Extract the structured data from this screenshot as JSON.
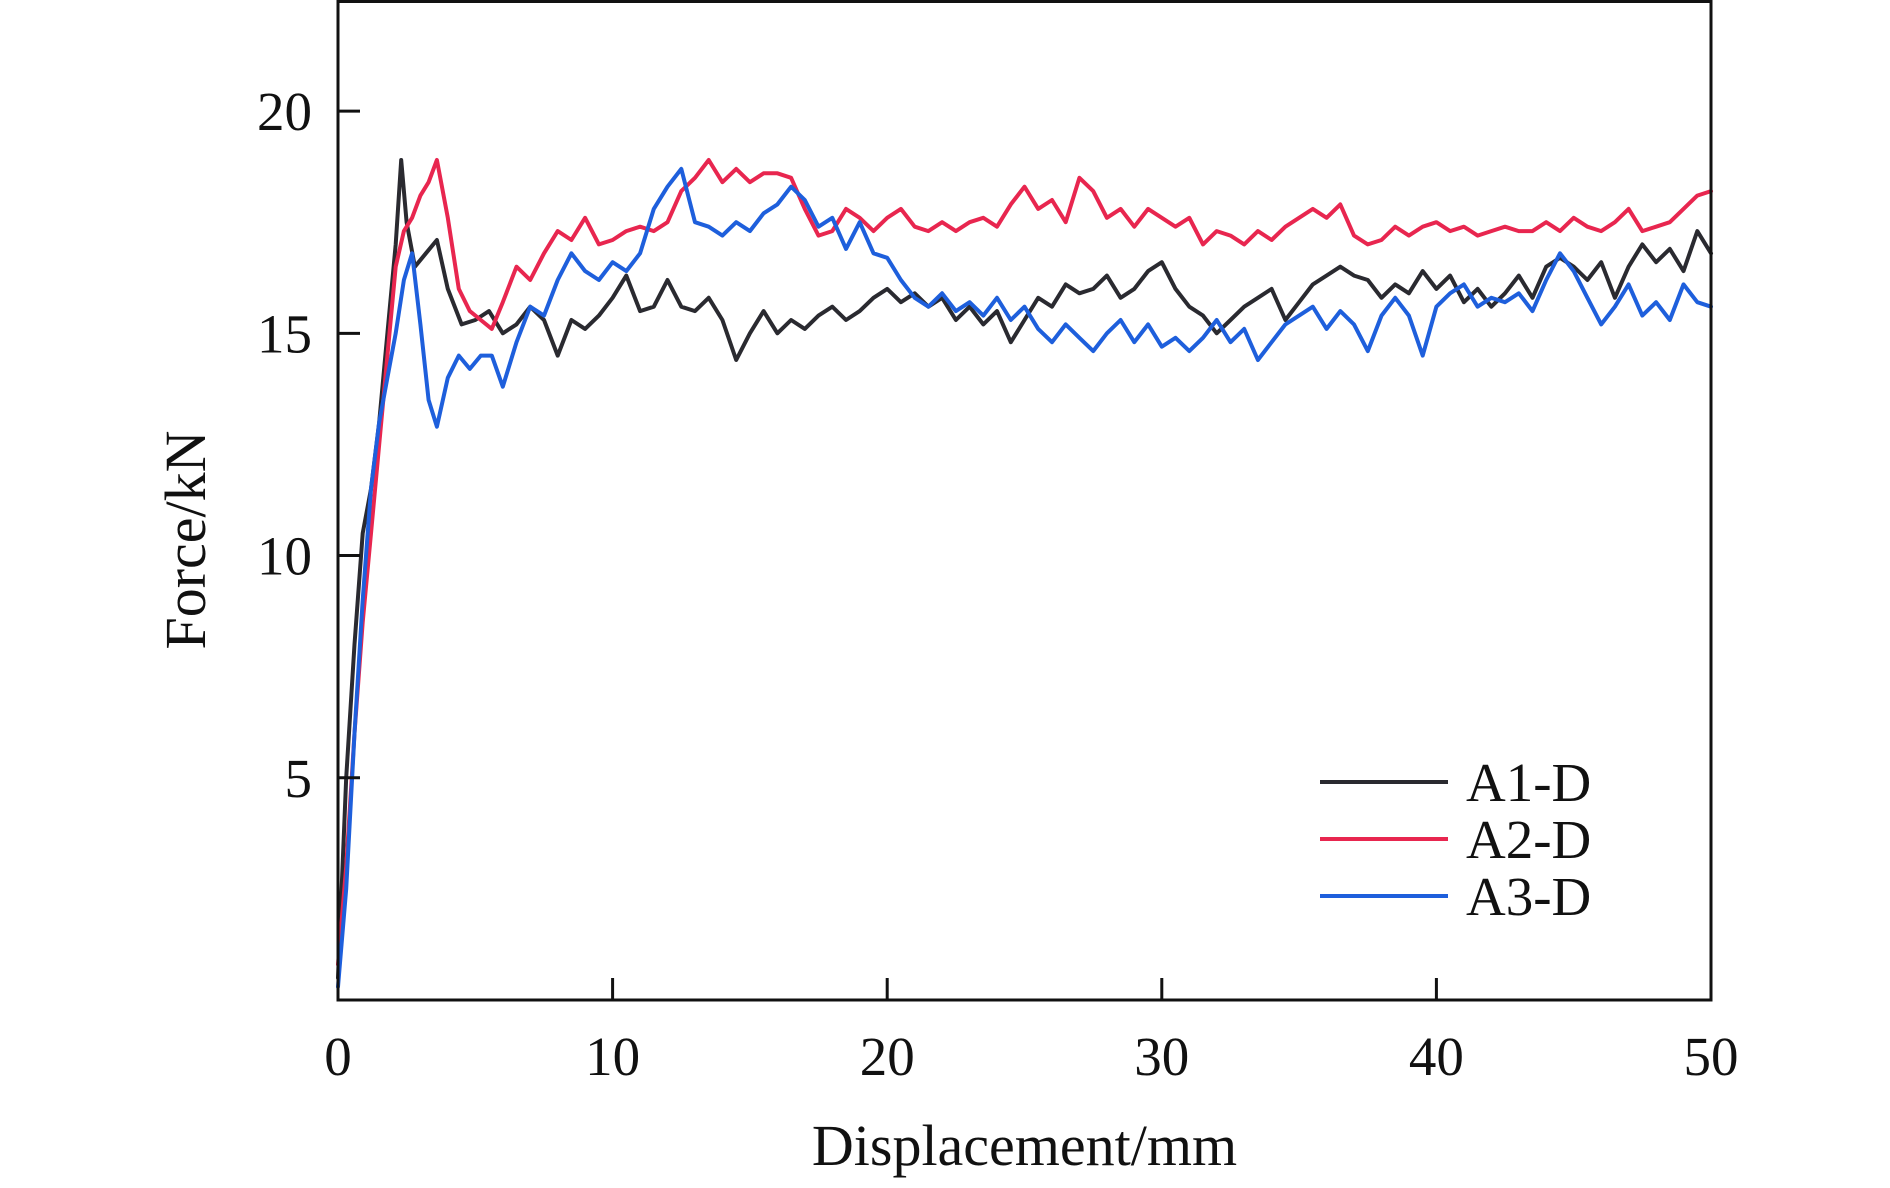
{
  "chart_data": {
    "type": "line",
    "title": "",
    "xlabel": "Displacement/mm",
    "ylabel": "Force/kN",
    "xlim": [
      0,
      50
    ],
    "ylim": [
      0,
      22.5
    ],
    "x_ticks": [
      0,
      10,
      20,
      30,
      40,
      50
    ],
    "y_ticks": [
      5,
      10,
      15,
      20
    ],
    "grid": false,
    "legend_position": "bottom-right",
    "series": [
      {
        "name": "A1-D",
        "color": "#2a2a30",
        "points": [
          [
            0,
            0.5
          ],
          [
            0.3,
            5
          ],
          [
            0.6,
            8
          ],
          [
            0.9,
            10.5
          ],
          [
            1.2,
            11.5
          ],
          [
            1.5,
            13
          ],
          [
            1.8,
            15
          ],
          [
            2.1,
            17
          ],
          [
            2.3,
            18.9
          ],
          [
            2.5,
            17.5
          ],
          [
            2.8,
            16.5
          ],
          [
            3.2,
            16.8
          ],
          [
            3.6,
            17.1
          ],
          [
            4,
            16
          ],
          [
            4.5,
            15.2
          ],
          [
            5,
            15.3
          ],
          [
            5.5,
            15.5
          ],
          [
            6,
            15
          ],
          [
            6.5,
            15.2
          ],
          [
            7,
            15.6
          ],
          [
            7.5,
            15.3
          ],
          [
            8,
            14.5
          ],
          [
            8.5,
            15.3
          ],
          [
            9,
            15.1
          ],
          [
            9.5,
            15.4
          ],
          [
            10,
            15.8
          ],
          [
            10.5,
            16.3
          ],
          [
            11,
            15.5
          ],
          [
            11.5,
            15.6
          ],
          [
            12,
            16.2
          ],
          [
            12.5,
            15.6
          ],
          [
            13,
            15.5
          ],
          [
            13.5,
            15.8
          ],
          [
            14,
            15.3
          ],
          [
            14.5,
            14.4
          ],
          [
            15,
            15
          ],
          [
            15.5,
            15.5
          ],
          [
            16,
            15
          ],
          [
            16.5,
            15.3
          ],
          [
            17,
            15.1
          ],
          [
            17.5,
            15.4
          ],
          [
            18,
            15.6
          ],
          [
            18.5,
            15.3
          ],
          [
            19,
            15.5
          ],
          [
            19.5,
            15.8
          ],
          [
            20,
            16
          ],
          [
            20.5,
            15.7
          ],
          [
            21,
            15.9
          ],
          [
            21.5,
            15.6
          ],
          [
            22,
            15.8
          ],
          [
            22.5,
            15.3
          ],
          [
            23,
            15.6
          ],
          [
            23.5,
            15.2
          ],
          [
            24,
            15.5
          ],
          [
            24.5,
            14.8
          ],
          [
            25,
            15.3
          ],
          [
            25.5,
            15.8
          ],
          [
            26,
            15.6
          ],
          [
            26.5,
            16.1
          ],
          [
            27,
            15.9
          ],
          [
            27.5,
            16
          ],
          [
            28,
            16.3
          ],
          [
            28.5,
            15.8
          ],
          [
            29,
            16
          ],
          [
            29.5,
            16.4
          ],
          [
            30,
            16.6
          ],
          [
            30.5,
            16
          ],
          [
            31,
            15.6
          ],
          [
            31.5,
            15.4
          ],
          [
            32,
            15
          ],
          [
            32.5,
            15.3
          ],
          [
            33,
            15.6
          ],
          [
            33.5,
            15.8
          ],
          [
            34,
            16
          ],
          [
            34.5,
            15.3
          ],
          [
            35,
            15.7
          ],
          [
            35.5,
            16.1
          ],
          [
            36,
            16.3
          ],
          [
            36.5,
            16.5
          ],
          [
            37,
            16.3
          ],
          [
            37.5,
            16.2
          ],
          [
            38,
            15.8
          ],
          [
            38.5,
            16.1
          ],
          [
            39,
            15.9
          ],
          [
            39.5,
            16.4
          ],
          [
            40,
            16
          ],
          [
            40.5,
            16.3
          ],
          [
            41,
            15.7
          ],
          [
            41.5,
            16
          ],
          [
            42,
            15.6
          ],
          [
            42.5,
            15.9
          ],
          [
            43,
            16.3
          ],
          [
            43.5,
            15.8
          ],
          [
            44,
            16.5
          ],
          [
            44.5,
            16.7
          ],
          [
            45,
            16.5
          ],
          [
            45.5,
            16.2
          ],
          [
            46,
            16.6
          ],
          [
            46.5,
            15.8
          ],
          [
            47,
            16.5
          ],
          [
            47.5,
            17
          ],
          [
            48,
            16.6
          ],
          [
            48.5,
            16.9
          ],
          [
            49,
            16.4
          ],
          [
            49.5,
            17.3
          ],
          [
            50,
            16.8
          ]
        ]
      },
      {
        "name": "A2-D",
        "color": "#e8264f",
        "points": [
          [
            0,
            0.8
          ],
          [
            0.3,
            3
          ],
          [
            0.6,
            6
          ],
          [
            0.9,
            8.5
          ],
          [
            1.2,
            10.5
          ],
          [
            1.5,
            12.5
          ],
          [
            1.8,
            14.5
          ],
          [
            2.1,
            16.5
          ],
          [
            2.4,
            17.3
          ],
          [
            2.7,
            17.6
          ],
          [
            3,
            18.1
          ],
          [
            3.3,
            18.4
          ],
          [
            3.6,
            18.9
          ],
          [
            4,
            17.6
          ],
          [
            4.4,
            16
          ],
          [
            4.8,
            15.5
          ],
          [
            5.2,
            15.3
          ],
          [
            5.6,
            15.1
          ],
          [
            6,
            15.7
          ],
          [
            6.5,
            16.5
          ],
          [
            7,
            16.2
          ],
          [
            7.5,
            16.8
          ],
          [
            8,
            17.3
          ],
          [
            8.5,
            17.1
          ],
          [
            9,
            17.6
          ],
          [
            9.5,
            17
          ],
          [
            10,
            17.1
          ],
          [
            10.5,
            17.3
          ],
          [
            11,
            17.4
          ],
          [
            11.5,
            17.3
          ],
          [
            12,
            17.5
          ],
          [
            12.5,
            18.2
          ],
          [
            13,
            18.5
          ],
          [
            13.5,
            18.9
          ],
          [
            14,
            18.4
          ],
          [
            14.5,
            18.7
          ],
          [
            15,
            18.4
          ],
          [
            15.5,
            18.6
          ],
          [
            16,
            18.6
          ],
          [
            16.5,
            18.5
          ],
          [
            17,
            17.8
          ],
          [
            17.5,
            17.2
          ],
          [
            18,
            17.3
          ],
          [
            18.5,
            17.8
          ],
          [
            19,
            17.6
          ],
          [
            19.5,
            17.3
          ],
          [
            20,
            17.6
          ],
          [
            20.5,
            17.8
          ],
          [
            21,
            17.4
          ],
          [
            21.5,
            17.3
          ],
          [
            22,
            17.5
          ],
          [
            22.5,
            17.3
          ],
          [
            23,
            17.5
          ],
          [
            23.5,
            17.6
          ],
          [
            24,
            17.4
          ],
          [
            24.5,
            17.9
          ],
          [
            25,
            18.3
          ],
          [
            25.5,
            17.8
          ],
          [
            26,
            18
          ],
          [
            26.5,
            17.5
          ],
          [
            27,
            18.5
          ],
          [
            27.5,
            18.2
          ],
          [
            28,
            17.6
          ],
          [
            28.5,
            17.8
          ],
          [
            29,
            17.4
          ],
          [
            29.5,
            17.8
          ],
          [
            30,
            17.6
          ],
          [
            30.5,
            17.4
          ],
          [
            31,
            17.6
          ],
          [
            31.5,
            17
          ],
          [
            32,
            17.3
          ],
          [
            32.5,
            17.2
          ],
          [
            33,
            17
          ],
          [
            33.5,
            17.3
          ],
          [
            34,
            17.1
          ],
          [
            34.5,
            17.4
          ],
          [
            35,
            17.6
          ],
          [
            35.5,
            17.8
          ],
          [
            36,
            17.6
          ],
          [
            36.5,
            17.9
          ],
          [
            37,
            17.2
          ],
          [
            37.5,
            17
          ],
          [
            38,
            17.1
          ],
          [
            38.5,
            17.4
          ],
          [
            39,
            17.2
          ],
          [
            39.5,
            17.4
          ],
          [
            40,
            17.5
          ],
          [
            40.5,
            17.3
          ],
          [
            41,
            17.4
          ],
          [
            41.5,
            17.2
          ],
          [
            42,
            17.3
          ],
          [
            42.5,
            17.4
          ],
          [
            43,
            17.3
          ],
          [
            43.5,
            17.3
          ],
          [
            44,
            17.5
          ],
          [
            44.5,
            17.3
          ],
          [
            45,
            17.6
          ],
          [
            45.5,
            17.4
          ],
          [
            46,
            17.3
          ],
          [
            46.5,
            17.5
          ],
          [
            47,
            17.8
          ],
          [
            47.5,
            17.3
          ],
          [
            48,
            17.4
          ],
          [
            48.5,
            17.5
          ],
          [
            49,
            17.8
          ],
          [
            49.5,
            18.1
          ],
          [
            50,
            18.2
          ]
        ]
      },
      {
        "name": "A3-D",
        "color": "#1e5fdc",
        "points": [
          [
            0,
            0.3
          ],
          [
            0.3,
            2.5
          ],
          [
            0.6,
            6
          ],
          [
            0.9,
            9
          ],
          [
            1.2,
            11.5
          ],
          [
            1.5,
            13
          ],
          [
            1.8,
            14
          ],
          [
            2.1,
            15
          ],
          [
            2.4,
            16.2
          ],
          [
            2.7,
            16.8
          ],
          [
            3,
            15.2
          ],
          [
            3.3,
            13.5
          ],
          [
            3.6,
            12.9
          ],
          [
            4,
            14
          ],
          [
            4.4,
            14.5
          ],
          [
            4.8,
            14.2
          ],
          [
            5.2,
            14.5
          ],
          [
            5.6,
            14.5
          ],
          [
            6,
            13.8
          ],
          [
            6.5,
            14.8
          ],
          [
            7,
            15.6
          ],
          [
            7.5,
            15.4
          ],
          [
            8,
            16.2
          ],
          [
            8.5,
            16.8
          ],
          [
            9,
            16.4
          ],
          [
            9.5,
            16.2
          ],
          [
            10,
            16.6
          ],
          [
            10.5,
            16.4
          ],
          [
            11,
            16.8
          ],
          [
            11.5,
            17.8
          ],
          [
            12,
            18.3
          ],
          [
            12.5,
            18.7
          ],
          [
            13,
            17.5
          ],
          [
            13.5,
            17.4
          ],
          [
            14,
            17.2
          ],
          [
            14.5,
            17.5
          ],
          [
            15,
            17.3
          ],
          [
            15.5,
            17.7
          ],
          [
            16,
            17.9
          ],
          [
            16.5,
            18.3
          ],
          [
            17,
            18
          ],
          [
            17.5,
            17.4
          ],
          [
            18,
            17.6
          ],
          [
            18.5,
            16.9
          ],
          [
            19,
            17.5
          ],
          [
            19.5,
            16.8
          ],
          [
            20,
            16.7
          ],
          [
            20.5,
            16.2
          ],
          [
            21,
            15.8
          ],
          [
            21.5,
            15.6
          ],
          [
            22,
            15.9
          ],
          [
            22.5,
            15.5
          ],
          [
            23,
            15.7
          ],
          [
            23.5,
            15.4
          ],
          [
            24,
            15.8
          ],
          [
            24.5,
            15.3
          ],
          [
            25,
            15.6
          ],
          [
            25.5,
            15.1
          ],
          [
            26,
            14.8
          ],
          [
            26.5,
            15.2
          ],
          [
            27,
            14.9
          ],
          [
            27.5,
            14.6
          ],
          [
            28,
            15
          ],
          [
            28.5,
            15.3
          ],
          [
            29,
            14.8
          ],
          [
            29.5,
            15.2
          ],
          [
            30,
            14.7
          ],
          [
            30.5,
            14.9
          ],
          [
            31,
            14.6
          ],
          [
            31.5,
            14.9
          ],
          [
            32,
            15.3
          ],
          [
            32.5,
            14.8
          ],
          [
            33,
            15.1
          ],
          [
            33.5,
            14.4
          ],
          [
            34,
            14.8
          ],
          [
            34.5,
            15.2
          ],
          [
            35,
            15.4
          ],
          [
            35.5,
            15.6
          ],
          [
            36,
            15.1
          ],
          [
            36.5,
            15.5
          ],
          [
            37,
            15.2
          ],
          [
            37.5,
            14.6
          ],
          [
            38,
            15.4
          ],
          [
            38.5,
            15.8
          ],
          [
            39,
            15.4
          ],
          [
            39.5,
            14.5
          ],
          [
            40,
            15.6
          ],
          [
            40.5,
            15.9
          ],
          [
            41,
            16.1
          ],
          [
            41.5,
            15.6
          ],
          [
            42,
            15.8
          ],
          [
            42.5,
            15.7
          ],
          [
            43,
            15.9
          ],
          [
            43.5,
            15.5
          ],
          [
            44,
            16.2
          ],
          [
            44.5,
            16.8
          ],
          [
            45,
            16.4
          ],
          [
            45.5,
            15.8
          ],
          [
            46,
            15.2
          ],
          [
            46.5,
            15.6
          ],
          [
            47,
            16.1
          ],
          [
            47.5,
            15.4
          ],
          [
            48,
            15.7
          ],
          [
            48.5,
            15.3
          ],
          [
            49,
            16.1
          ],
          [
            49.5,
            15.7
          ],
          [
            50,
            15.6
          ]
        ]
      }
    ]
  }
}
